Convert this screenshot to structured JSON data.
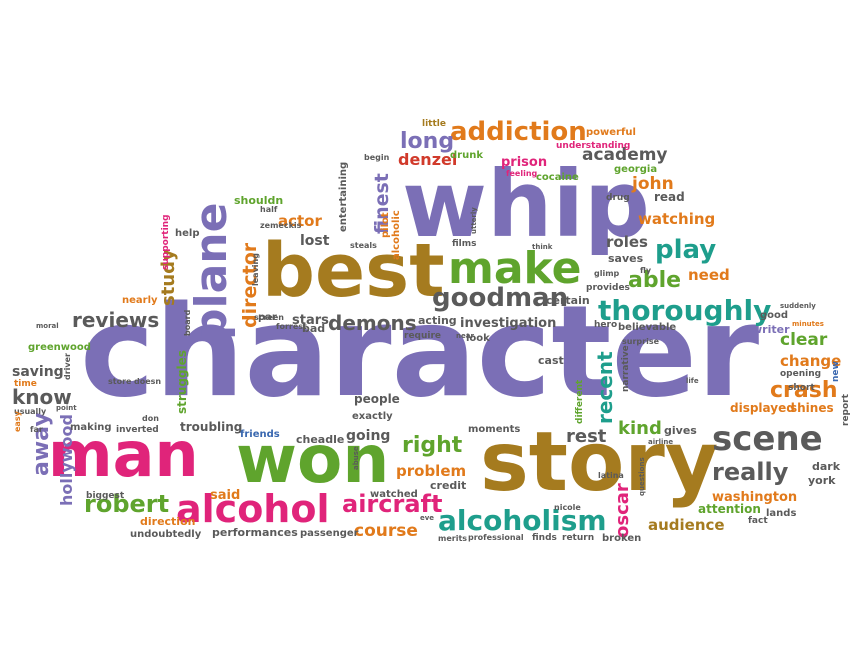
{
  "background": "#ffffff",
  "palette": {
    "purple": "#7b6fb6",
    "green": "#5fa42d",
    "brown": "#a57b1f",
    "magenta": "#e0247a",
    "orange": "#e17a1b",
    "gray": "#5a5a5a",
    "teal": "#1e9e8c",
    "blue": "#3a68b0",
    "red": "#d13a2b"
  },
  "words": [
    {
      "text": "character",
      "color": "purple"
    },
    {
      "text": "whip",
      "color": "purple"
    },
    {
      "text": "story",
      "color": "brown"
    },
    {
      "text": "best",
      "color": "brown"
    },
    {
      "text": "won",
      "color": "green"
    },
    {
      "text": "man",
      "color": "magenta"
    },
    {
      "text": "make",
      "color": "green"
    },
    {
      "text": "alcohol",
      "color": "magenta"
    },
    {
      "text": "scene",
      "color": "gray"
    },
    {
      "text": "alcoholism",
      "color": "teal"
    },
    {
      "text": "plane",
      "color": "purple"
    },
    {
      "text": "thoroughly",
      "color": "teal"
    },
    {
      "text": "addiction",
      "color": "orange"
    },
    {
      "text": "aircraft",
      "color": "magenta"
    },
    {
      "text": "goodman",
      "color": "gray"
    },
    {
      "text": "robert",
      "color": "green"
    },
    {
      "text": "play",
      "color": "teal"
    },
    {
      "text": "really",
      "color": "gray"
    },
    {
      "text": "demons",
      "color": "gray"
    },
    {
      "text": "crash",
      "color": "orange"
    },
    {
      "text": "long",
      "color": "purple"
    },
    {
      "text": "right",
      "color": "green"
    },
    {
      "text": "hollywood",
      "color": "purple"
    },
    {
      "text": "reviews",
      "color": "gray"
    },
    {
      "text": "away",
      "color": "purple"
    },
    {
      "text": "director",
      "color": "orange"
    },
    {
      "text": "finest",
      "color": "purple"
    },
    {
      "text": "study",
      "color": "brown"
    },
    {
      "text": "know",
      "color": "gray"
    },
    {
      "text": "oscar",
      "color": "magenta"
    },
    {
      "text": "recent",
      "color": "teal"
    },
    {
      "text": "able",
      "color": "green"
    },
    {
      "text": "kind",
      "color": "green"
    },
    {
      "text": "rest",
      "color": "gray"
    },
    {
      "text": "clear",
      "color": "green"
    },
    {
      "text": "change",
      "color": "orange"
    },
    {
      "text": "audience",
      "color": "brown"
    },
    {
      "text": "course",
      "color": "orange"
    },
    {
      "text": "academy",
      "color": "gray"
    },
    {
      "text": "denzel",
      "color": "red"
    },
    {
      "text": "john",
      "color": "orange"
    },
    {
      "text": "watching",
      "color": "orange"
    },
    {
      "text": "roles",
      "color": "gray"
    },
    {
      "text": "need",
      "color": "orange"
    },
    {
      "text": "washington",
      "color": "orange"
    },
    {
      "text": "investigation",
      "color": "gray"
    },
    {
      "text": "problem",
      "color": "orange"
    },
    {
      "text": "actor",
      "color": "orange"
    },
    {
      "text": "lost",
      "color": "gray"
    },
    {
      "text": "saving",
      "color": "gray"
    },
    {
      "text": "said",
      "color": "orange"
    },
    {
      "text": "going",
      "color": "gray"
    },
    {
      "text": "stars",
      "color": "gray"
    },
    {
      "text": "people",
      "color": "gray"
    },
    {
      "text": "displayed",
      "color": "orange"
    },
    {
      "text": "shines",
      "color": "orange"
    },
    {
      "text": "dark",
      "color": "gray"
    },
    {
      "text": "york",
      "color": "gray"
    },
    {
      "text": "gives",
      "color": "gray"
    },
    {
      "text": "writer",
      "color": "purple"
    },
    {
      "text": "good",
      "color": "gray"
    },
    {
      "text": "believable",
      "color": "gray"
    },
    {
      "text": "saves",
      "color": "gray"
    },
    {
      "text": "troubling",
      "color": "gray"
    },
    {
      "text": "friends",
      "color": "blue"
    },
    {
      "text": "cheadle",
      "color": "gray"
    },
    {
      "text": "exactly",
      "color": "gray"
    },
    {
      "text": "moments",
      "color": "gray"
    },
    {
      "text": "credit",
      "color": "gray"
    },
    {
      "text": "watched",
      "color": "gray"
    },
    {
      "text": "direction",
      "color": "orange"
    },
    {
      "text": "performances",
      "color": "gray"
    },
    {
      "text": "passenger",
      "color": "gray"
    },
    {
      "text": "undoubtedly",
      "color": "gray"
    },
    {
      "text": "attention",
      "color": "green"
    },
    {
      "text": "lands",
      "color": "gray"
    },
    {
      "text": "fact",
      "color": "gray"
    },
    {
      "text": "broken",
      "color": "gray"
    },
    {
      "text": "return",
      "color": "gray"
    },
    {
      "text": "finds",
      "color": "gray"
    },
    {
      "text": "merits",
      "color": "gray"
    },
    {
      "text": "professional",
      "color": "gray"
    },
    {
      "text": "prison",
      "color": "magenta"
    },
    {
      "text": "cocaine",
      "color": "green"
    },
    {
      "text": "drunk",
      "color": "green"
    },
    {
      "text": "georgia",
      "color": "green"
    },
    {
      "text": "drug",
      "color": "gray"
    },
    {
      "text": "read",
      "color": "gray"
    },
    {
      "text": "understanding",
      "color": "magenta"
    },
    {
      "text": "powerful",
      "color": "orange"
    },
    {
      "text": "little",
      "color": "brown"
    },
    {
      "text": "begin",
      "color": "gray"
    },
    {
      "text": "feeling",
      "color": "magenta"
    },
    {
      "text": "shouldn",
      "color": "green"
    },
    {
      "text": "entertaining",
      "color": "gray"
    },
    {
      "text": "pilot",
      "color": "orange"
    },
    {
      "text": "alcoholic",
      "color": "orange"
    },
    {
      "text": "films",
      "color": "gray"
    },
    {
      "text": "steals",
      "color": "gray"
    },
    {
      "text": "utterly",
      "color": "gray"
    },
    {
      "text": "think",
      "color": "gray"
    },
    {
      "text": "half",
      "color": "gray"
    },
    {
      "text": "zemeckis",
      "color": "gray"
    },
    {
      "text": "help",
      "color": "gray"
    },
    {
      "text": "supporting",
      "color": "magenta"
    },
    {
      "text": "nearly",
      "color": "orange"
    },
    {
      "text": "leaving",
      "color": "gray"
    },
    {
      "text": "screen",
      "color": "gray"
    },
    {
      "text": "par",
      "color": "gray"
    },
    {
      "text": "forrest",
      "color": "gray"
    },
    {
      "text": "bad",
      "color": "gray"
    },
    {
      "text": "board",
      "color": "gray"
    },
    {
      "text": "acting",
      "color": "gray"
    },
    {
      "text": "require",
      "color": "gray"
    },
    {
      "text": "look",
      "color": "gray"
    },
    {
      "text": "certain",
      "color": "gray"
    },
    {
      "text": "provides",
      "color": "gray"
    },
    {
      "text": "hero",
      "color": "gray"
    },
    {
      "text": "glimp",
      "color": "gray"
    },
    {
      "text": "fly",
      "color": "gray"
    },
    {
      "text": "surprise",
      "color": "gray"
    },
    {
      "text": "narrative",
      "color": "gray"
    },
    {
      "text": "different",
      "color": "green"
    },
    {
      "text": "cast",
      "color": "gray"
    },
    {
      "text": "nicole",
      "color": "gray"
    },
    {
      "text": "abuse",
      "color": "gray"
    },
    {
      "text": "eve",
      "color": "gray"
    },
    {
      "text": "latina",
      "color": "gray"
    },
    {
      "text": "questions",
      "color": "gray"
    },
    {
      "text": "airline",
      "color": "gray"
    },
    {
      "text": "suddenly",
      "color": "gray"
    },
    {
      "text": "short",
      "color": "gray"
    },
    {
      "text": "opening",
      "color": "gray"
    },
    {
      "text": "minutes",
      "color": "orange"
    },
    {
      "text": "new",
      "color": "blue"
    },
    {
      "text": "report",
      "color": "gray"
    },
    {
      "text": "life",
      "color": "gray"
    },
    {
      "text": "greenwood",
      "color": "green"
    },
    {
      "text": "time",
      "color": "orange"
    },
    {
      "text": "usually",
      "color": "gray"
    },
    {
      "text": "point",
      "color": "gray"
    },
    {
      "text": "making",
      "color": "gray"
    },
    {
      "text": "inverted",
      "color": "gray"
    },
    {
      "text": "don",
      "color": "gray"
    },
    {
      "text": "struggles",
      "color": "green"
    },
    {
      "text": "biggest",
      "color": "gray"
    },
    {
      "text": "easy",
      "color": "orange"
    },
    {
      "text": "far",
      "color": "gray"
    },
    {
      "text": "driver",
      "color": "gray"
    },
    {
      "text": "moral",
      "color": "gray"
    },
    {
      "text": "store",
      "color": "gray"
    },
    {
      "text": "doesn",
      "color": "gray"
    },
    {
      "text": "near",
      "color": "gray"
    }
  ]
}
